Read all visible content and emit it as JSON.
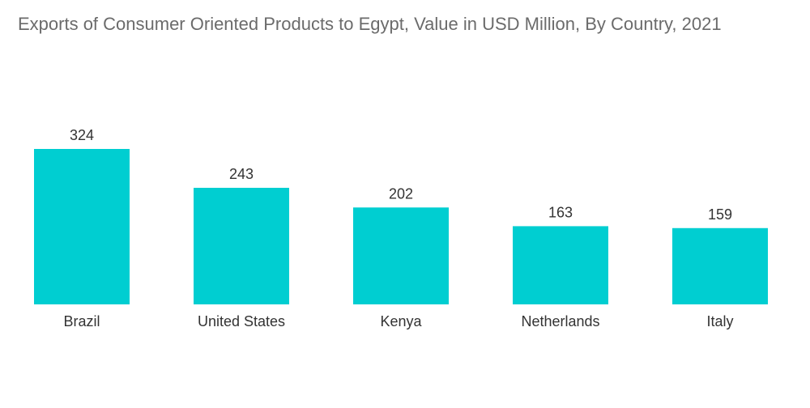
{
  "chart_data": {
    "type": "bar",
    "title": "Exports of Consumer Oriented Products to Egypt, Value in USD Million, By Country, 2021",
    "categories": [
      "Brazil",
      "United States",
      "Kenya",
      "Netherlands",
      "Italy"
    ],
    "values": [
      324,
      243,
      202,
      163,
      159
    ],
    "xlabel": "",
    "ylabel": "",
    "ylim": [
      0,
      324
    ],
    "grid": false,
    "legend": "none",
    "bar_color": "#00ced1"
  }
}
